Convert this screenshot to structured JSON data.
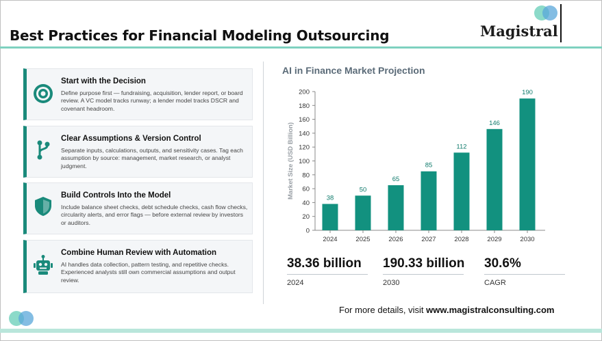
{
  "page": {
    "title": "Best Practices for Financial Modeling Outsourcing",
    "logo_text": "Magistral"
  },
  "cards": [
    {
      "heading": "Start with the Decision",
      "body": "Define purpose first — fundraising, acquisition, lender report, or board review. A VC model tracks runway; a lender model tracks DSCR and covenant headroom.",
      "icon": "target-icon"
    },
    {
      "heading": "Clear Assumptions & Version Control",
      "body": "Separate inputs, calculations, outputs, and sensitivity cases. Tag each assumption by source: management, market research, or analyst judgment.",
      "icon": "branch-icon"
    },
    {
      "heading": "Build Controls Into the Model",
      "body": "Include balance sheet checks, debt schedule checks, cash flow checks, circularity alerts, and error flags — before external review by investors or auditors.",
      "icon": "shield-icon"
    },
    {
      "heading": "Combine Human Review with Automation",
      "body": "AI handles data collection, pattern testing, and repetitive checks. Experienced analysts still own commercial assumptions and output review.",
      "icon": "robot-icon"
    }
  ],
  "chart_data": {
    "type": "bar",
    "title": "AI in Finance Market Projection",
    "categories": [
      "2024",
      "2025",
      "2026",
      "2027",
      "2028",
      "2029",
      "2030"
    ],
    "values": [
      38,
      50,
      65,
      85,
      112,
      146,
      190
    ],
    "ylabel": "Market Size (USD Billion)",
    "xlabel": "",
    "ylim": [
      0,
      200
    ],
    "yticks": [
      0,
      20,
      40,
      60,
      80,
      100,
      120,
      140,
      160,
      180,
      200
    ],
    "bar_color": "#12917f",
    "grid": false
  },
  "stats": [
    {
      "value": "38.36 billion",
      "label": "2024"
    },
    {
      "value": "190.33 billion",
      "label": "2030"
    },
    {
      "value": "30.6%",
      "label": "CAGR"
    }
  ],
  "footer": {
    "prefix": "For more details, visit ",
    "link": "www.magistralconsulting.com"
  },
  "colors": {
    "accent": "#1a8a7b",
    "title_rule": "#7ed1bf"
  }
}
